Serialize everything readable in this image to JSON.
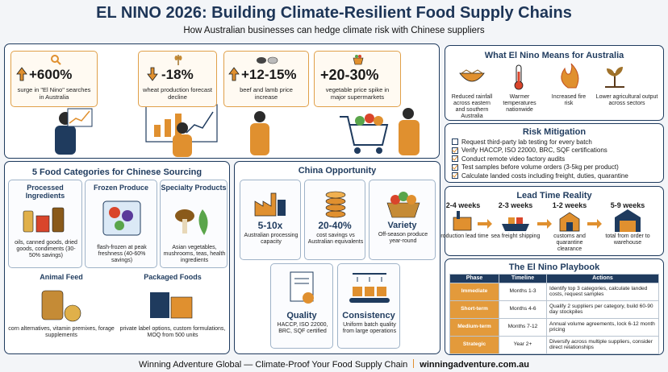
{
  "header": {
    "title": "EL NINO 2026: Building Climate-Resilient Food Supply Chains",
    "subtitle": "How Australian businesses can hedge climate risk with Chinese suppliers"
  },
  "stats": [
    {
      "value": "+600%",
      "label": "surge in \"El Nino\" searches in Australia"
    },
    {
      "value": "-18%",
      "label": "wheat production forecast decline"
    },
    {
      "value": "+12-15%",
      "label": "beef and lamb price increase"
    },
    {
      "value": "+20-30%",
      "label": "vegetable price spike in major supermarkets"
    }
  ],
  "el_nino": {
    "title": "What El Nino Means for Australia",
    "items": [
      "Reduced rainfall across eastern and southern Australia",
      "Warmer temperatures nationwide",
      "Increased fire risk",
      "Lower agricultural output across sectors"
    ]
  },
  "risk": {
    "title": "Risk Mitigation",
    "items": [
      "Request third-party lab testing for every batch",
      "Verify HACCP, ISO 22000, BRC, SQF certifications",
      "Conduct remote video factory audits",
      "Test samples before volume orders (3-5kg per product)",
      "Calculate landed costs including freight, duties, quarantine"
    ]
  },
  "categories": {
    "title": "5 Food Categories for Chinese Sourcing",
    "items": [
      {
        "name": "Processed Ingredients",
        "desc": "oils, canned goods, dried goods, condiments (30-50% savings)"
      },
      {
        "name": "Frozen Produce",
        "desc": "flash-frozen at peak freshness (40-60% savings)"
      },
      {
        "name": "Specialty Products",
        "desc": "Asian vegetables, mushrooms, teas, health ingredients"
      },
      {
        "name": "Animal Feed",
        "desc": "corn alternatives, vitamin premixes, forage supplements"
      },
      {
        "name": "Packaged Foods",
        "desc": "private label options, custom formulations, MOQ from 500 units"
      }
    ]
  },
  "china": {
    "title": "China Opportunity",
    "items": [
      {
        "head": "5-10x",
        "desc": "Australian processing capacity"
      },
      {
        "head": "20-40%",
        "desc": "cost savings vs Australian equivalents"
      },
      {
        "head": "Variety",
        "desc": "Off-season produce year-round"
      },
      {
        "head": "Quality",
        "desc": "HACCP, ISO 22000, BRC, SQF certified"
      },
      {
        "head": "Consistency",
        "desc": "Uniform batch quality from large operations"
      }
    ]
  },
  "lead_time": {
    "title": "Lead Time Reality",
    "steps": [
      {
        "duration": "2-4 weeks",
        "label": "production lead time"
      },
      {
        "duration": "2-3 weeks",
        "label": "sea freight shipping"
      },
      {
        "duration": "1-2 weeks",
        "label": "customs and quarantine clearance"
      },
      {
        "duration": "5-9 weeks",
        "label": "total from order to warehouse"
      }
    ]
  },
  "playbook": {
    "title": "The El Nino Playbook",
    "headers": [
      "Phase",
      "Timeline",
      "Actions"
    ],
    "rows": [
      [
        "Immediate",
        "Months 1-3",
        "Identify top 3 categories, calculate landed costs, request samples"
      ],
      [
        "Short-term",
        "Months 4-6",
        "Qualify 2 suppliers per category, build 60-90 day stockpiles"
      ],
      [
        "Medium-term",
        "Months 7-12",
        "Annual volume agreements, lock 6-12 month pricing"
      ],
      [
        "Strategic",
        "Year 2+",
        "Diversify across multiple suppliers, consider direct relationships"
      ]
    ]
  },
  "footer": {
    "text": "Winning Adventure Global — Climate-Proof Your Food Supply Chain",
    "link": "winningadventure.com.au"
  }
}
